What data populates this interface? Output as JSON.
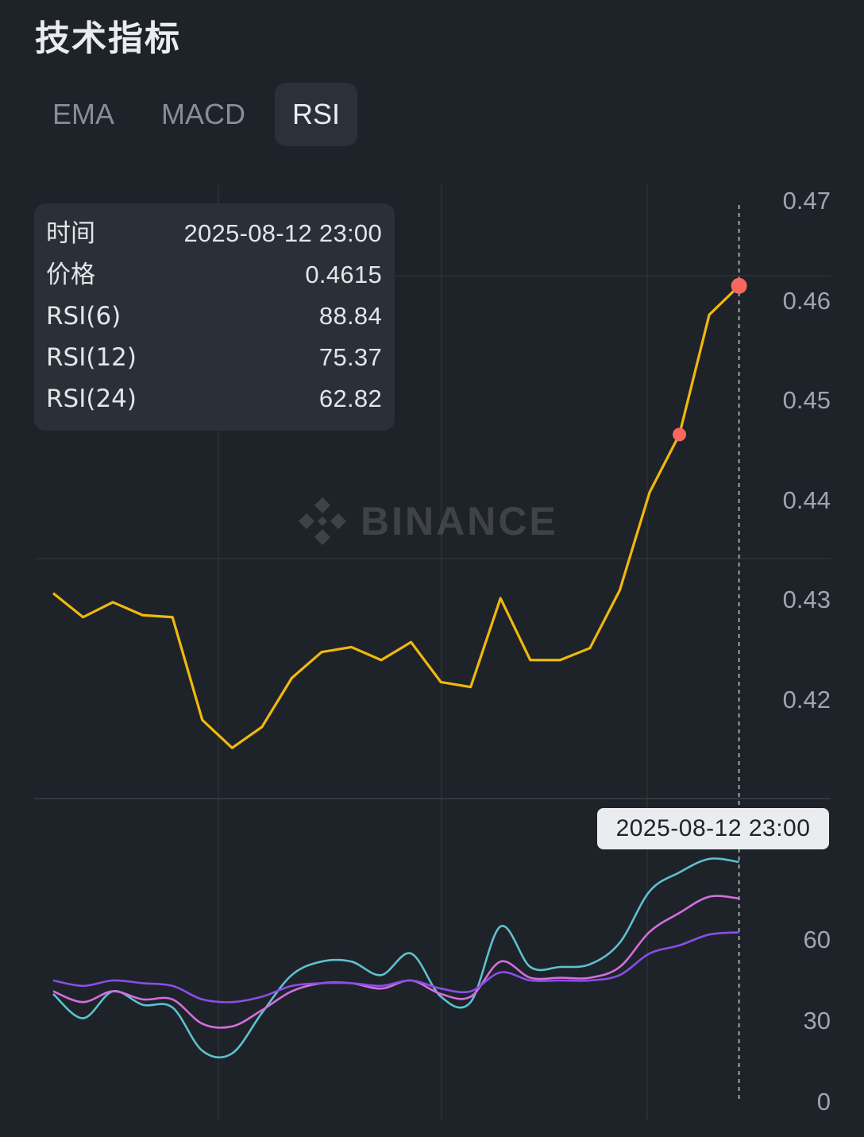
{
  "header": {
    "title": "技术指标"
  },
  "tabs": [
    {
      "label": "EMA",
      "active": false
    },
    {
      "label": "MACD",
      "active": false
    },
    {
      "label": "RSI",
      "active": true
    }
  ],
  "tooltip": {
    "rows": [
      {
        "label": "时间",
        "value": "2025-08-12 23:00"
      },
      {
        "label": "价格",
        "value": "0.4615"
      },
      {
        "label": "RSI(6)",
        "value": "88.84"
      },
      {
        "label": "RSI(12)",
        "value": "75.37"
      },
      {
        "label": "RSI(24)",
        "value": "62.82"
      }
    ]
  },
  "crosshair_label": "2025-08-12 23:00",
  "watermark": "BINANCE",
  "colors": {
    "background": "#1e2329",
    "price_line": "#f0b90b",
    "marker": "#f6685e",
    "rsi6": "#5fc0cf",
    "rsi12": "#d36ee0",
    "rsi24": "#8a4ee6",
    "grid": "#2b3139"
  },
  "chart_data": [
    {
      "type": "line",
      "name": "price",
      "y_ticks": [
        "0.47",
        "0.46",
        "0.45",
        "0.44",
        "0.43",
        "0.42"
      ],
      "ylim": [
        0.41,
        0.47
      ],
      "values": [
        0.4307,
        0.4283,
        0.4298,
        0.4285,
        0.4283,
        0.418,
        0.4152,
        0.4173,
        0.4222,
        0.4248,
        0.4253,
        0.424,
        0.4258,
        0.4218,
        0.4213,
        0.4302,
        0.424,
        0.424,
        0.4252,
        0.431,
        0.4408,
        0.4466,
        0.4586,
        0.4615
      ],
      "markers": [
        21,
        23
      ]
    },
    {
      "type": "line",
      "name": "RSI",
      "y_ticks": [
        "60",
        "30",
        "0"
      ],
      "ylim": [
        0,
        100
      ],
      "series": [
        {
          "name": "RSI(6)",
          "values": [
            40,
            31,
            41,
            36,
            35,
            19,
            18,
            33,
            47,
            52,
            52,
            47,
            55,
            39,
            37,
            65,
            50,
            50,
            51,
            59,
            78,
            85,
            90,
            88.84
          ]
        },
        {
          "name": "RSI(12)",
          "values": [
            41,
            37,
            41,
            38,
            38,
            29,
            28,
            34,
            41,
            44,
            44,
            42,
            45,
            40,
            39,
            52,
            46,
            46,
            46,
            50,
            63,
            70,
            76,
            75.37
          ]
        },
        {
          "name": "RSI(24)",
          "values": [
            45,
            43,
            45,
            44,
            43,
            38,
            37,
            39,
            43,
            44,
            44,
            43,
            45,
            42,
            41,
            48,
            45,
            45,
            45,
            47,
            55,
            58,
            62,
            62.82
          ]
        }
      ]
    }
  ]
}
